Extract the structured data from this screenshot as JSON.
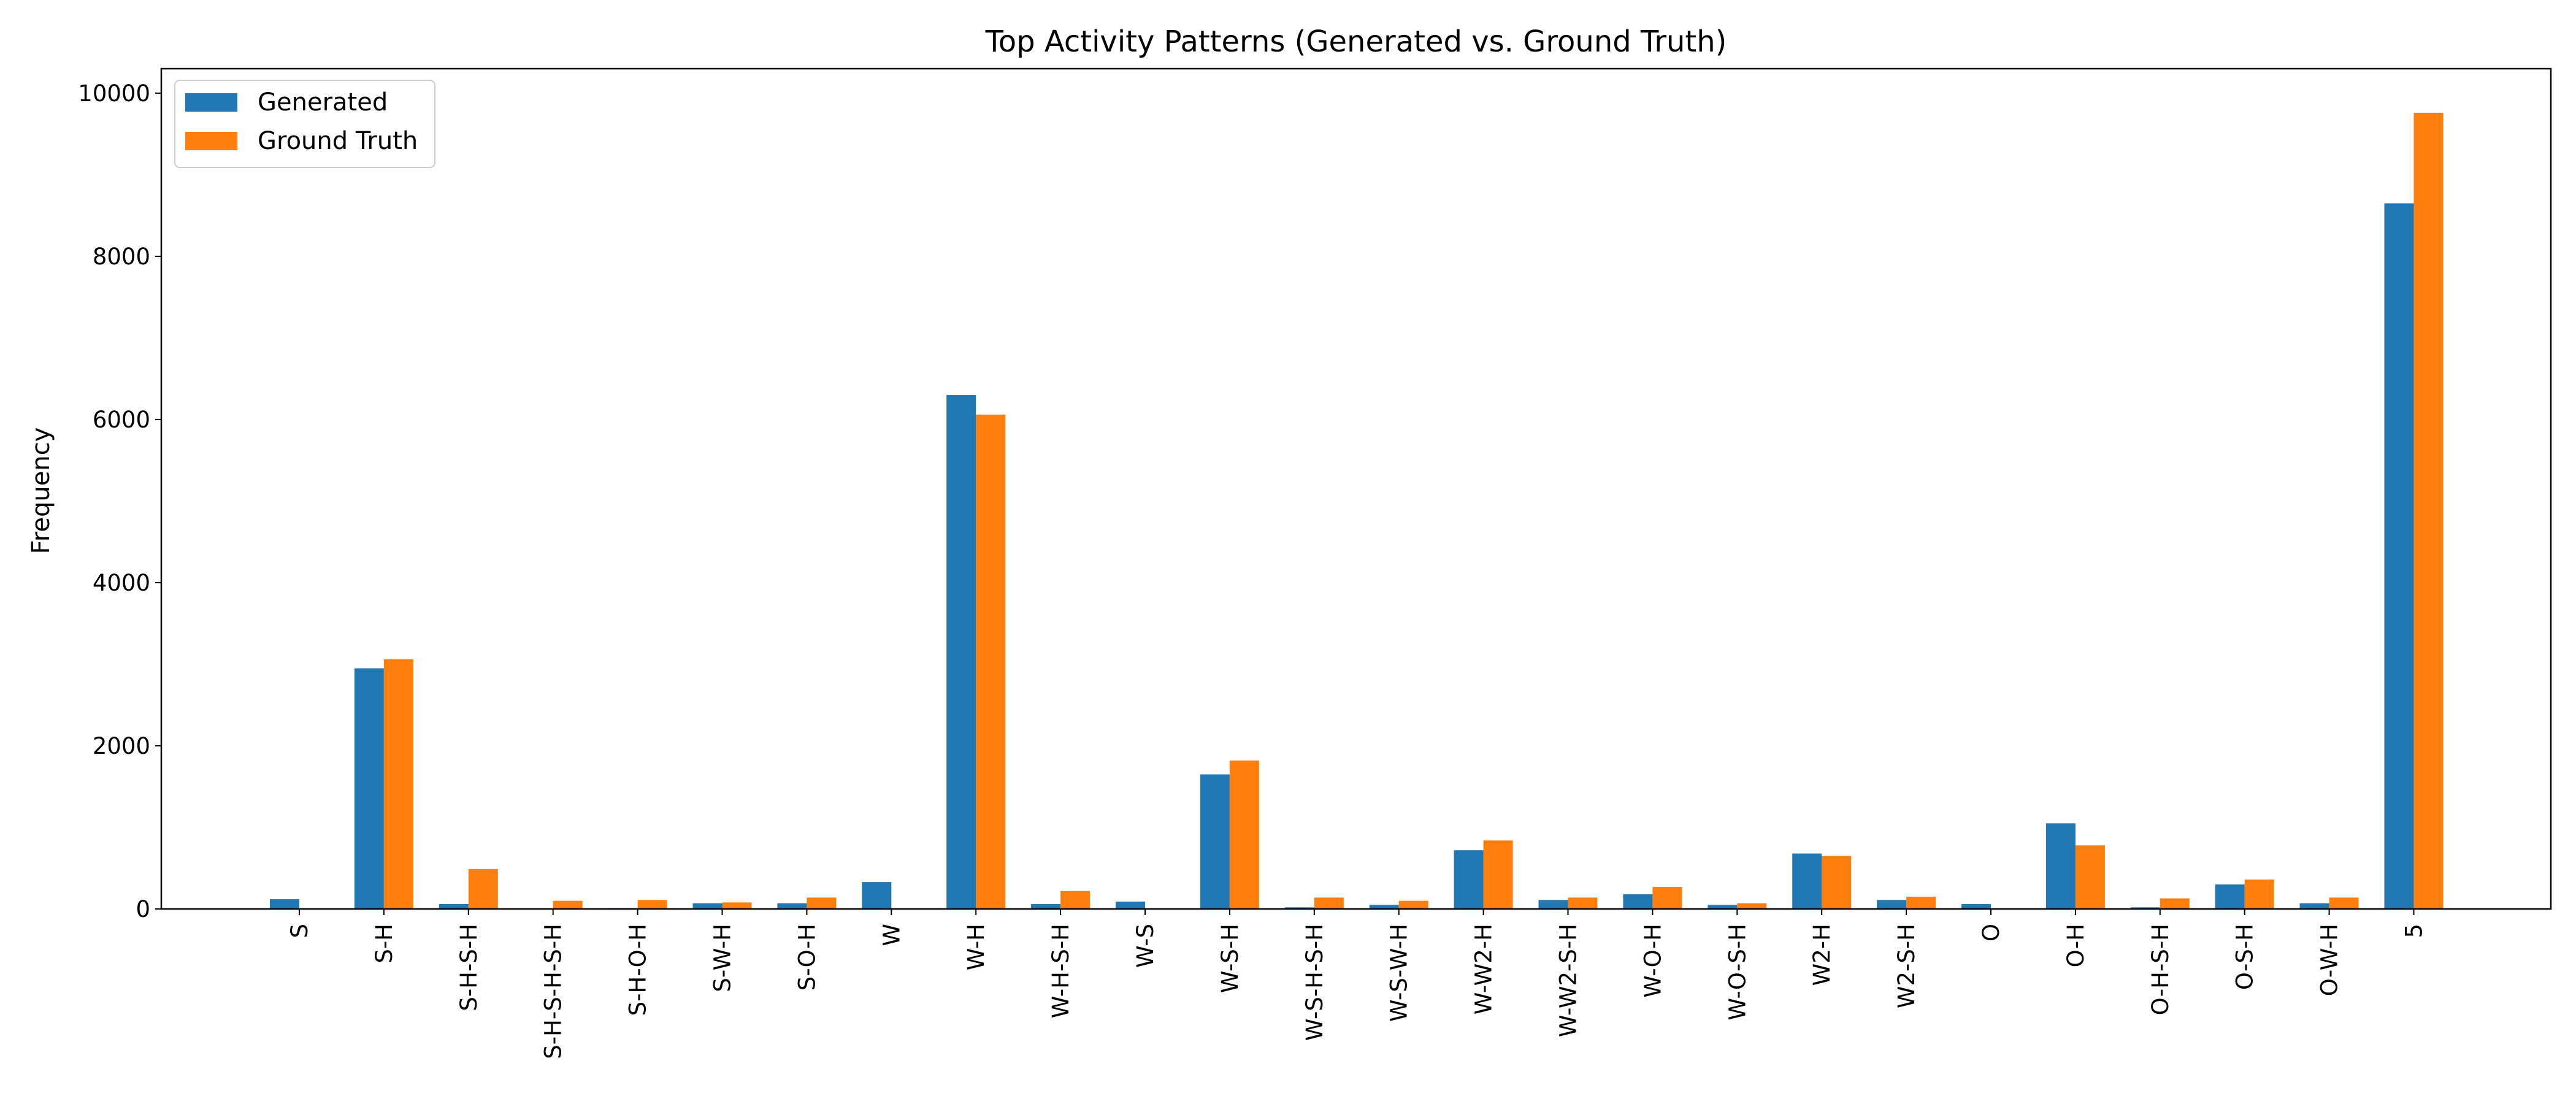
{
  "chart_data": {
    "type": "bar",
    "title": "Top Activity Patterns (Generated vs. Ground Truth)",
    "xlabel": "",
    "ylabel": "Frequency",
    "ylim": [
      0,
      10300
    ],
    "yticks": [
      0,
      2000,
      4000,
      6000,
      8000,
      10000
    ],
    "grid": false,
    "legend_position": "top-left",
    "categories": [
      "S",
      "S-H",
      "S-H-S-H",
      "S-H-S-H-S-H",
      "S-H-O-H",
      "S-W-H",
      "S-O-H",
      "W",
      "W-H",
      "W-H-S-H",
      "W-S",
      "W-S-H",
      "W-S-H-S-H",
      "W-S-W-H",
      "W-W2-H",
      "W-W2-S-H",
      "W-O-H",
      "W-O-S-H",
      "W2-H",
      "W2-S-H",
      "O",
      "O-H",
      "O-H-S-H",
      "O-S-H",
      "O-W-H",
      "5"
    ],
    "series": [
      {
        "name": "Generated",
        "color": "#1f77b4",
        "values": [
          120,
          2950,
          60,
          0,
          10,
          70,
          70,
          330,
          6300,
          60,
          90,
          1650,
          20,
          50,
          720,
          110,
          180,
          50,
          680,
          110,
          60,
          1050,
          20,
          300,
          70,
          8650
        ]
      },
      {
        "name": "Ground Truth",
        "color": "#ff7f0e",
        "values": [
          0,
          3060,
          490,
          100,
          110,
          80,
          140,
          0,
          6060,
          220,
          0,
          1820,
          140,
          100,
          840,
          140,
          270,
          70,
          650,
          150,
          0,
          780,
          130,
          360,
          140,
          9760
        ]
      }
    ]
  }
}
